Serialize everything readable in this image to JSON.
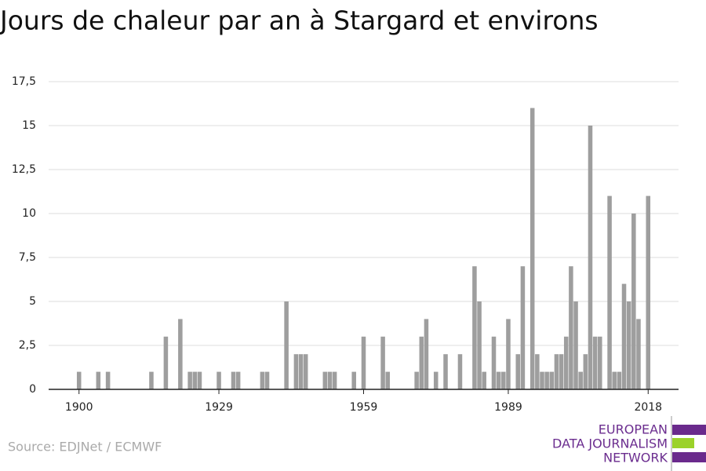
{
  "chart_data": {
    "type": "bar",
    "title": "Jours de chaleur par an à Stargard et environs",
    "source": "Source: EDJNet / ECMWF",
    "logo": [
      "EUROPEAN",
      "DATA JOURNALISM",
      "NETWORK"
    ],
    "color": "#9e9e9e",
    "grid": true,
    "x": [
      1900,
      1901,
      1902,
      1903,
      1904,
      1905,
      1906,
      1907,
      1908,
      1909,
      1910,
      1911,
      1912,
      1913,
      1914,
      1915,
      1916,
      1917,
      1918,
      1919,
      1920,
      1921,
      1922,
      1923,
      1924,
      1925,
      1926,
      1927,
      1928,
      1929,
      1930,
      1931,
      1932,
      1933,
      1934,
      1935,
      1936,
      1937,
      1938,
      1939,
      1940,
      1941,
      1942,
      1943,
      1944,
      1945,
      1946,
      1947,
      1948,
      1949,
      1950,
      1951,
      1952,
      1953,
      1954,
      1955,
      1956,
      1957,
      1958,
      1959,
      1960,
      1961,
      1962,
      1963,
      1964,
      1965,
      1966,
      1967,
      1968,
      1969,
      1970,
      1971,
      1972,
      1973,
      1974,
      1975,
      1976,
      1977,
      1978,
      1979,
      1980,
      1981,
      1982,
      1983,
      1984,
      1985,
      1986,
      1987,
      1988,
      1989,
      1990,
      1991,
      1992,
      1993,
      1994,
      1995,
      1996,
      1997,
      1998,
      1999,
      2000,
      2001,
      2002,
      2003,
      2004,
      2005,
      2006,
      2007,
      2008,
      2009,
      2010,
      2011,
      2012,
      2013,
      2014,
      2015,
      2016,
      2017,
      2018
    ],
    "values": [
      1,
      0,
      0,
      0,
      1,
      0,
      1,
      0,
      0,
      0,
      0,
      0,
      0,
      0,
      0,
      1,
      0,
      0,
      3,
      0,
      0,
      4,
      0,
      1,
      1,
      1,
      0,
      0,
      0,
      1,
      0,
      0,
      1,
      1,
      0,
      0,
      0,
      0,
      1,
      1,
      0,
      0,
      0,
      5,
      0,
      2,
      2,
      2,
      0,
      0,
      0,
      1,
      1,
      1,
      0,
      0,
      0,
      1,
      0,
      3,
      0,
      0,
      0,
      3,
      1,
      0,
      0,
      0,
      0,
      0,
      1,
      3,
      4,
      0,
      1,
      0,
      2,
      0,
      0,
      2,
      0,
      0,
      7,
      5,
      1,
      0,
      3,
      1,
      1,
      4,
      0,
      2,
      7,
      0,
      16,
      2,
      1,
      1,
      1,
      2,
      2,
      3,
      7,
      5,
      1,
      2,
      15,
      3,
      3,
      0,
      11,
      1,
      1,
      6,
      5,
      10,
      4,
      0,
      11
    ],
    "xlim": [
      1893.7,
      2024.3
    ],
    "xticks": [
      1900,
      1929,
      1959,
      1989,
      2018
    ],
    "ylim": [
      0,
      17.5
    ],
    "yticks": [
      0,
      {
        "value": 2.5,
        "label": "2,5"
      },
      5,
      {
        "value": 7.5,
        "label": "7,5"
      },
      10,
      {
        "value": 12.5,
        "label": "12,5"
      },
      15,
      {
        "value": 17.5,
        "label": "17,5"
      }
    ]
  }
}
